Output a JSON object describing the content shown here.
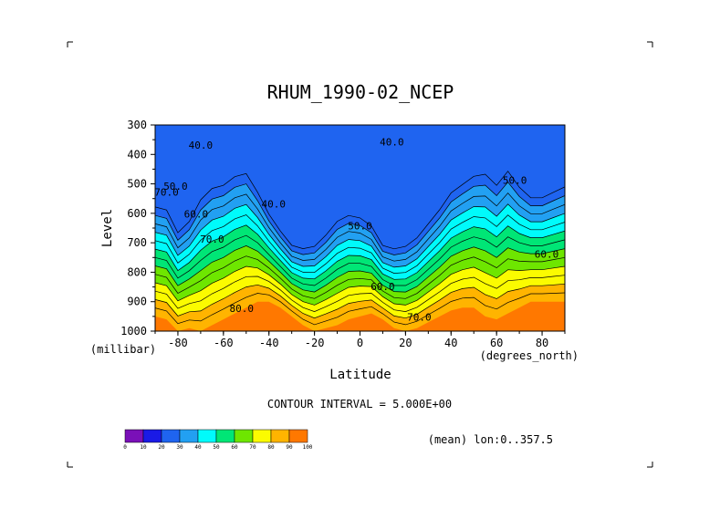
{
  "chart_data": {
    "type": "heatmap",
    "subtype": "filled-contour",
    "title": "RHUM_1990-02_NCEP",
    "xlabel": "Latitude",
    "ylabel": "Level",
    "xunits": "(degrees_north)",
    "yunits": "(millibar)",
    "xlim": [
      -90,
      90
    ],
    "ylim": [
      1000,
      300
    ],
    "x_ticks": [
      -80,
      -60,
      -40,
      -20,
      0,
      20,
      40,
      60,
      80
    ],
    "x_tick_labels": [
      "-80",
      "-60",
      "-40",
      "-20",
      "0",
      "20",
      "40",
      "60",
      "80"
    ],
    "y_ticks": [
      300,
      400,
      500,
      600,
      700,
      800,
      900,
      1000
    ],
    "y_tick_labels": [
      "300",
      "400",
      "500",
      "600",
      "700",
      "800",
      "900",
      "1000"
    ],
    "contour_interval_text": "CONTOUR INTERVAL = 5.000E+00",
    "footnote": "(mean) lon:0..357.5",
    "colorbar": {
      "levels": [
        0,
        10,
        20,
        30,
        40,
        50,
        60,
        70,
        80,
        90,
        100
      ],
      "labels": [
        "0",
        "10",
        "20",
        "30",
        "40",
        "50",
        "60",
        "70",
        "80",
        "90",
        "100"
      ],
      "colors": [
        "#7a10b8",
        "#1a1ae6",
        "#1f64f0",
        "#22a0f2",
        "#00fbfb",
        "#00e676",
        "#6ee600",
        "#fbfb00",
        "#ffb400",
        "#ff7800",
        "#ff1400"
      ]
    },
    "contour_labels": [
      {
        "text": "40.0",
        "lat": -70,
        "lev": 380
      },
      {
        "text": "40.0",
        "lat": 14,
        "lev": 370
      },
      {
        "text": "40.0",
        "lat": -38,
        "lev": 580
      },
      {
        "text": "50.0",
        "lat": -81,
        "lev": 520
      },
      {
        "text": "50.0",
        "lat": 0,
        "lev": 655
      },
      {
        "text": "50.0",
        "lat": 68,
        "lev": 500
      },
      {
        "text": "60.0",
        "lat": -72,
        "lev": 615
      },
      {
        "text": "60.0",
        "lat": 10,
        "lev": 860
      },
      {
        "text": "60.0",
        "lat": 82,
        "lev": 750
      },
      {
        "text": "70.0",
        "lat": -65,
        "lev": 700
      },
      {
        "text": "70.0",
        "lat": 26,
        "lev": 965
      },
      {
        "text": "80.0",
        "lat": -52,
        "lev": 935
      },
      {
        "text": "70.0",
        "lat": -85,
        "lev": 540
      }
    ],
    "field_profile": {
      "lat": [
        -90,
        -85,
        -80,
        -75,
        -70,
        -65,
        -60,
        -55,
        -50,
        -45,
        -40,
        -35,
        -30,
        -25,
        -20,
        -15,
        -10,
        -5,
        0,
        5,
        10,
        15,
        20,
        25,
        30,
        35,
        40,
        45,
        50,
        55,
        60,
        65,
        70,
        75,
        80,
        85,
        90
      ],
      "min_lev": [
        550,
        560,
        640,
        600,
        520,
        480,
        470,
        440,
        430,
        500,
        580,
        640,
        690,
        700,
        690,
        650,
        600,
        580,
        590,
        620,
        690,
        700,
        690,
        660,
        610,
        560,
        500,
        470,
        440,
        430,
        470,
        420,
        480,
        520,
        520,
        500,
        480
      ],
      "max_lev": [
        950,
        960,
        1000,
        990,
        1000,
        980,
        960,
        940,
        920,
        900,
        900,
        920,
        950,
        980,
        1000,
        990,
        980,
        960,
        950,
        940,
        960,
        990,
        1000,
        990,
        970,
        950,
        930,
        920,
        920,
        950,
        960,
        940,
        920,
        900,
        900,
        900,
        900
      ],
      "min_value": 20,
      "max_value": 90
    }
  }
}
